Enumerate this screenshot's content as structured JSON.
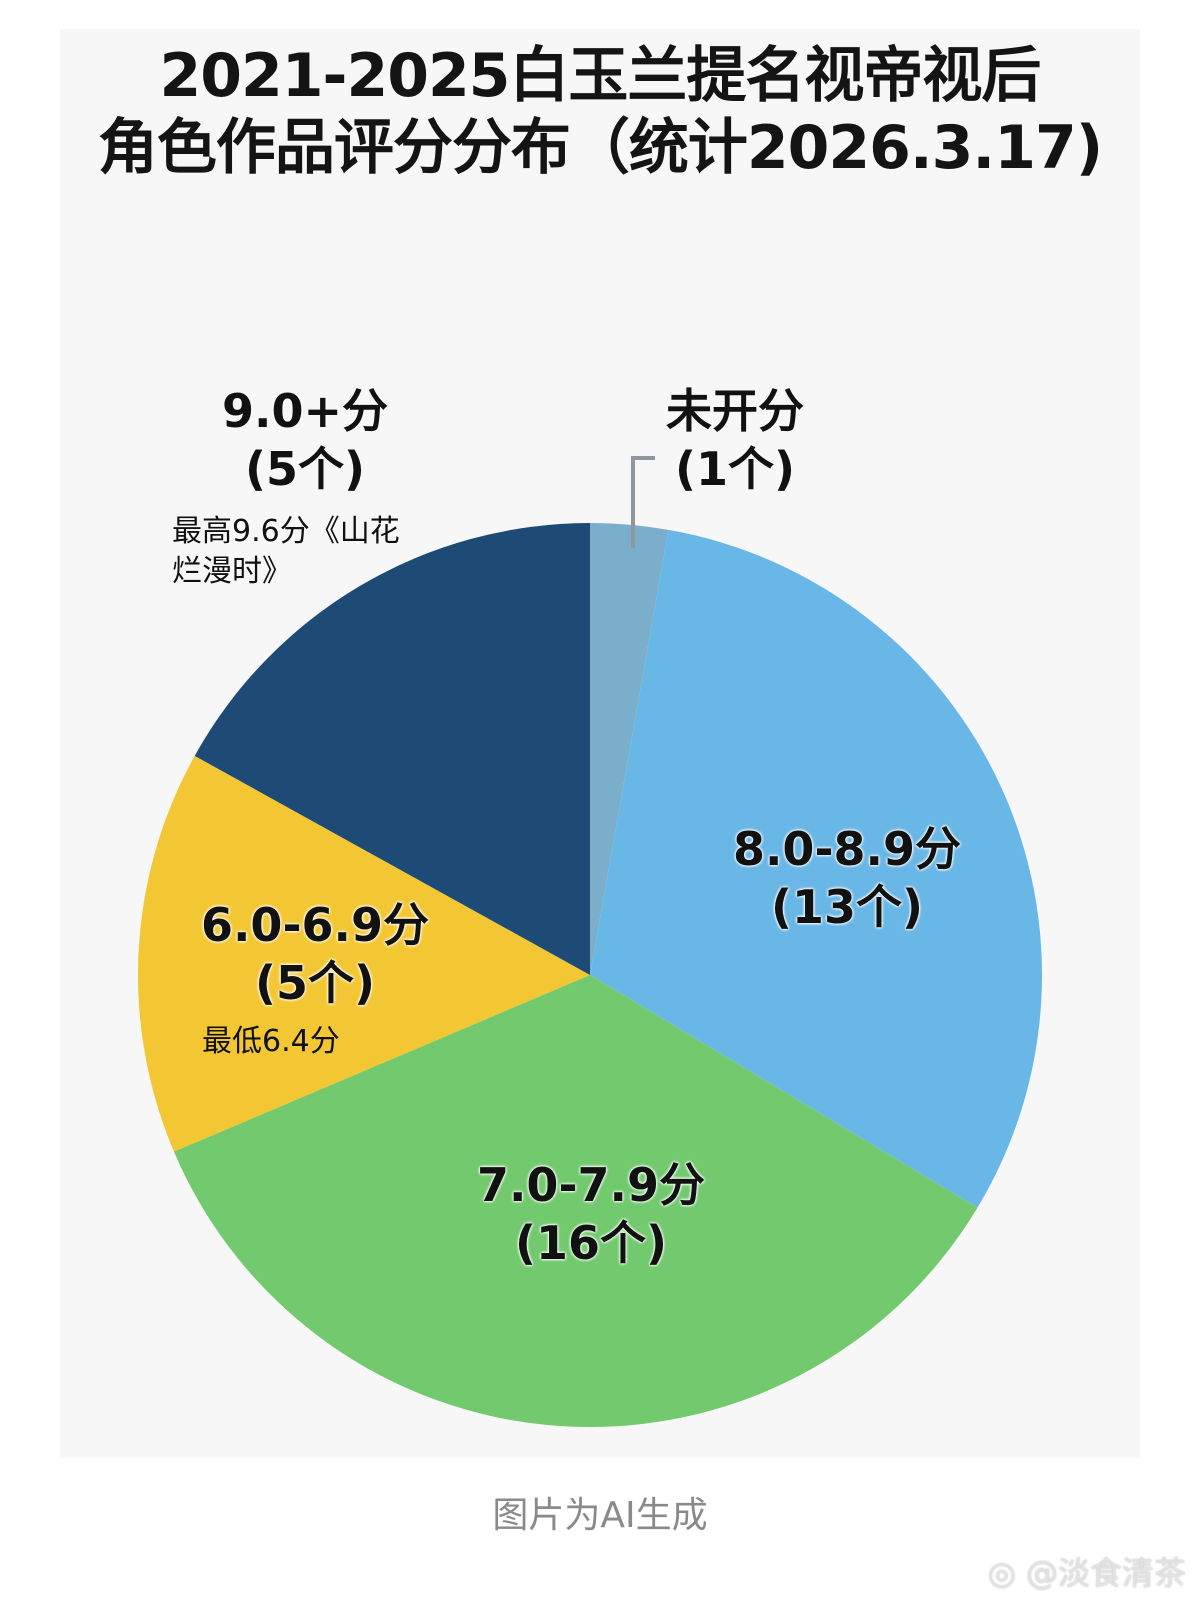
{
  "title": {
    "line1": "2021-2025白玉兰提名视帝视后",
    "line2": "角色作品评分分布（统计2026.3.17)"
  },
  "slices": [
    {
      "id": "unscored",
      "label": "未开分",
      "count": "(1个)",
      "color": "#7aaecb",
      "note": ""
    },
    {
      "id": "8-8.9",
      "label": "8.0-8.9分",
      "count": "(13个)",
      "color": "#69b7e6",
      "note": ""
    },
    {
      "id": "7-7.9",
      "label": "7.0-7.9分",
      "count": "(16个)",
      "color": "#72c96e",
      "note": ""
    },
    {
      "id": "6-6.9",
      "label": "6.0-6.9分",
      "count": "(5个)",
      "color": "#f3c733",
      "note": "最低6.4分"
    },
    {
      "id": "9+",
      "label": "9.0+分",
      "count": "(5个)",
      "color": "#1d4b75",
      "note_line1": "最高9.6分《山花",
      "note_line2": "烂漫时》"
    }
  ],
  "footer": "图片为AI生成",
  "watermark": "@淡食清茶",
  "chart_data": {
    "type": "pie",
    "title": "2021-2025白玉兰提名视帝视后角色作品评分分布（统计2026.3.17)",
    "categories": [
      "未开分",
      "8.0-8.9分",
      "7.0-7.9分",
      "6.0-6.9分",
      "9.0+分"
    ],
    "values": [
      1,
      13,
      16,
      5,
      5
    ],
    "colors": [
      "#7aaecb",
      "#69b7e6",
      "#72c96e",
      "#f3c733",
      "#1d4b75"
    ],
    "annotations": [
      {
        "category": "9.0+分",
        "text": "最高9.6分《山花烂漫时》"
      },
      {
        "category": "6.0-6.9分",
        "text": "最低6.4分"
      }
    ],
    "legend": "none (direct labels)"
  }
}
